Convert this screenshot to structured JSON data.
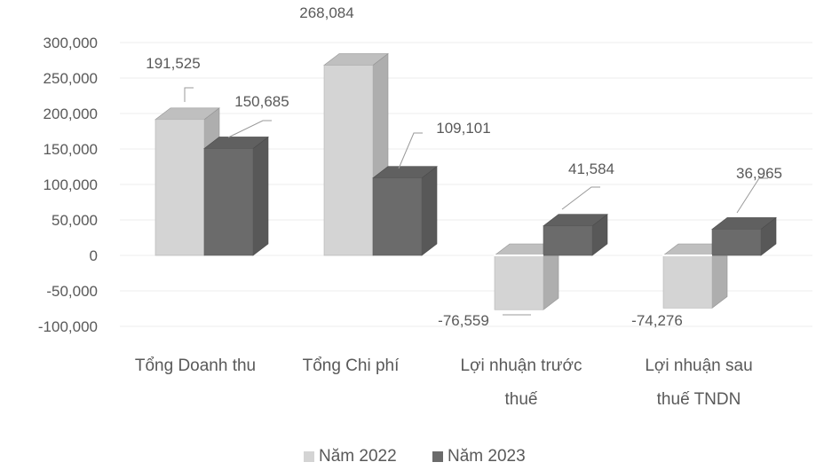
{
  "chart_data": {
    "type": "bar",
    "title": "",
    "xlabel": "",
    "ylabel": "",
    "categories": [
      [
        "Tổng Doanh thu"
      ],
      [
        "Tổng Chi phí"
      ],
      [
        "Lợi nhuận trước",
        "thuế"
      ],
      [
        "Lợi nhuận sau",
        "thuế TNDN"
      ]
    ],
    "series": [
      {
        "name": "Năm 2022",
        "values": [
          191525,
          268084,
          -76559,
          -74276
        ],
        "color": "#d4d4d4"
      },
      {
        "name": "Năm 2023",
        "values": [
          150685,
          109101,
          41584,
          36965
        ],
        "color": "#6b6b6b"
      }
    ],
    "data_labels": [
      [
        "191,525",
        "268,084",
        "-76,559",
        "-74,276"
      ],
      [
        "150,685",
        "109,101",
        "41,584",
        "36,965"
      ]
    ],
    "ylim": [
      -100000,
      300000
    ],
    "yticks": [
      -100000,
      -50000,
      0,
      50000,
      100000,
      150000,
      200000,
      250000,
      300000
    ],
    "ytick_labels": [
      "-100,000",
      "-50,000",
      "0",
      "50,000",
      "100,000",
      "150,000",
      "200,000",
      "250,000",
      "300,000"
    ],
    "grid": true,
    "legend_position": "bottom",
    "style": "3d-clustered-column"
  }
}
